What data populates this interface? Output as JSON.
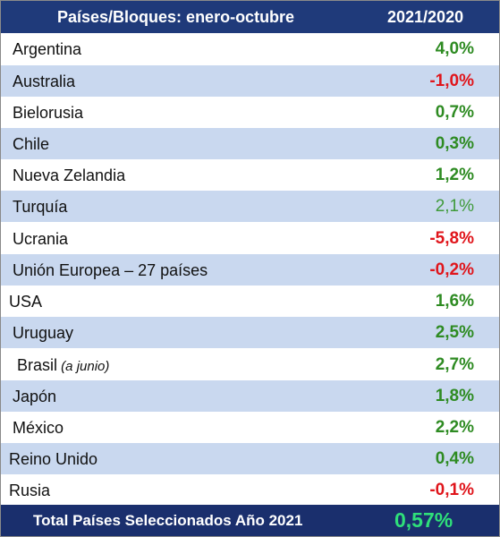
{
  "chart_data": {
    "type": "table",
    "columns": [
      "Países/Bloques: enero-octubre",
      "2021/2020"
    ],
    "rows": [
      {
        "name": "Argentina",
        "value": "4,0%",
        "num": 4.0
      },
      {
        "name": "Australia",
        "value": "-1,0%",
        "num": -1.0
      },
      {
        "name": "Bielorusia",
        "value": "0,7%",
        "num": 0.7
      },
      {
        "name": "Chile",
        "value": "0,3%",
        "num": 0.3
      },
      {
        "name": "Nueva Zelandia",
        "value": "1,2%",
        "num": 1.2
      },
      {
        "name": "Turquía",
        "value": "2,1%",
        "num": 2.1
      },
      {
        "name": "Ucrania",
        "value": "-5,8%",
        "num": -5.8
      },
      {
        "name": "Unión Europea – 27 países",
        "value": "-0,2%",
        "num": -0.2
      },
      {
        "name": "USA",
        "value": "1,6%",
        "num": 1.6
      },
      {
        "name": "Uruguay",
        "value": "2,5%",
        "num": 2.5
      },
      {
        "name": "Brasil",
        "note": "(a junio)",
        "value": "2,7%",
        "num": 2.7
      },
      {
        "name": "Japón",
        "value": "1,8%",
        "num": 1.8
      },
      {
        "name": "México",
        "value": "2,2%",
        "num": 2.2
      },
      {
        "name": "Reino Unido",
        "value": "0,4%",
        "num": 0.4
      },
      {
        "name": "Rusia",
        "value": "-0,1%",
        "num": -0.1
      }
    ],
    "total": {
      "label": "Total Países Seleccionados Año 2021",
      "value": "0,57%",
      "num": 0.57
    }
  },
  "colors": {
    "header_bg": "#1f3a7a",
    "stripe": "#c9d8ef",
    "positive": "#2e8b22",
    "negative": "#e0151b",
    "total_value": "#2fe07a"
  }
}
